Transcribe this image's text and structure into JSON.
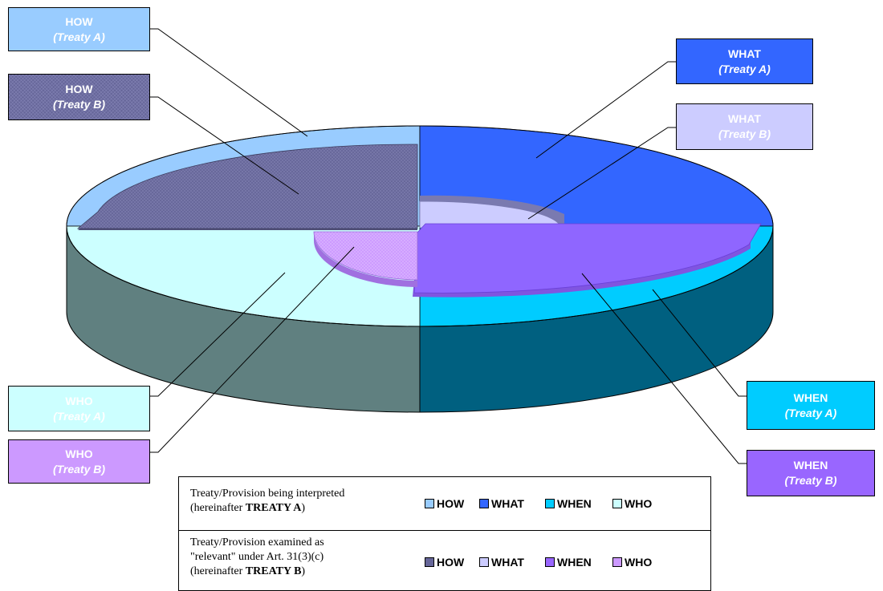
{
  "colors": {
    "how_a": "#99ccff",
    "how_b": "#666699",
    "what_a": "#3366ff",
    "what_b": "#ccccff",
    "when_a": "#00ccff",
    "when_b": "#9966ff",
    "who_a": "#ccffff",
    "who_b": "#cc99ff",
    "side_left": "#608080",
    "side_right": "#006080"
  },
  "callouts": {
    "how_a": {
      "title": "HOW",
      "subtitle": "(Treaty A)"
    },
    "how_b": {
      "title": "HOW",
      "subtitle": "(Treaty B)"
    },
    "what_a": {
      "title": "WHAT",
      "subtitle": "(Treaty A)"
    },
    "what_b": {
      "title": "WHAT",
      "subtitle": "(Treaty B)"
    },
    "when_a": {
      "title": "WHEN",
      "subtitle": "(Treaty A)"
    },
    "when_b": {
      "title": "WHEN",
      "subtitle": "(Treaty B)"
    },
    "who_a": {
      "title": "WHO",
      "subtitle": "(Treaty A)"
    },
    "who_b": {
      "title": "WHO",
      "subtitle": "(Treaty B)"
    }
  },
  "legend": {
    "treaty_a": {
      "line1": "Treaty/Provision being interpreted",
      "line2_prefix": "(hereinafter ",
      "line2_bold": "TREATY A",
      "line2_suffix": ")",
      "items": [
        "HOW",
        "WHAT",
        "WHEN",
        "WHO"
      ]
    },
    "treaty_b": {
      "line1": "Treaty/Provision examined as",
      "line2": "\"relevant\" under Art. 31(3)(c)",
      "line3_prefix": "(hereinafter ",
      "line3_bold": "TREATY B",
      "line3_suffix": ")",
      "items": [
        "HOW",
        "WHAT",
        "WHEN",
        "WHO"
      ]
    }
  }
}
